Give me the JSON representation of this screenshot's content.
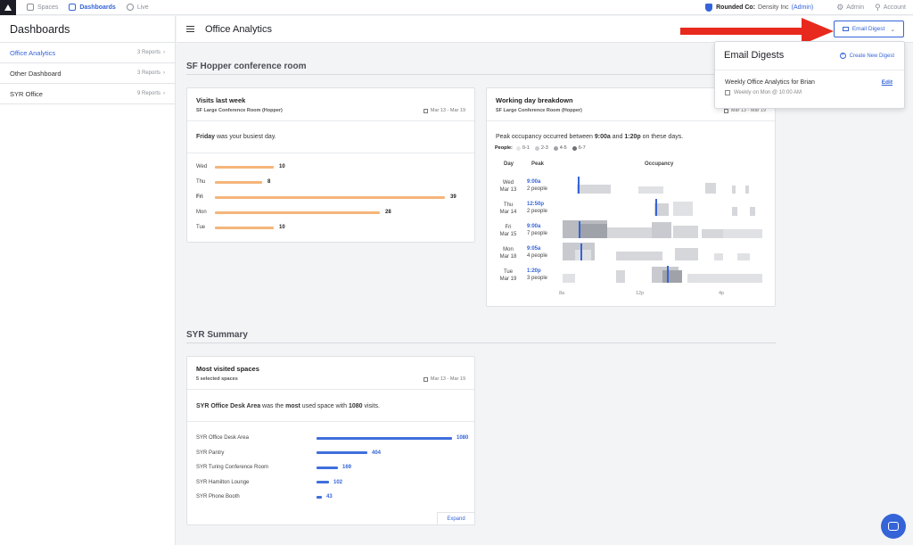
{
  "nav": {
    "items": [
      {
        "label": "Spaces",
        "icon": "grid-icon"
      },
      {
        "label": "Dashboards",
        "icon": "dashboard-icon"
      },
      {
        "label": "Live",
        "icon": "stopwatch-icon"
      }
    ],
    "org_label": "Rounded Co:",
    "org_name": "Density Inc",
    "org_role": "(Admin)",
    "admin_label": "Admin",
    "account_label": "Account"
  },
  "sidebar": {
    "title": "Dashboards",
    "items": [
      {
        "label": "Office Analytics",
        "count": "3 Reports"
      },
      {
        "label": "Other Dashboard",
        "count": "3 Reports"
      },
      {
        "label": "SYR Office",
        "count": "9 Reports"
      }
    ]
  },
  "header": {
    "title": "Office Analytics",
    "digest_button": "Email Digest"
  },
  "sections": {
    "hopper": "SF Hopper conference room",
    "syr": "SYR Summary"
  },
  "visits_card": {
    "title": "Visits last week",
    "subtitle": "SF Large Conference Room (Hopper)",
    "date": "Mar 13 - Mar 19",
    "summary_bold": "Friday",
    "summary_rest": " was your busiest day."
  },
  "working_card": {
    "title": "Working day breakdown",
    "subtitle": "SF Large Conference Room (Hopper)",
    "date": "Mar 13 - Mar 19",
    "summary_pre": "Peak occupancy occurred between ",
    "summary_t1": "9:00a",
    "summary_mid": " and ",
    "summary_t2": "1:20p",
    "summary_post": " on these days.",
    "legend_label": "People:",
    "legend": [
      {
        "label": "0-1",
        "color": "#e4e5e8"
      },
      {
        "label": "2-3",
        "color": "#c8cacf"
      },
      {
        "label": "4-5",
        "color": "#9fa2a8"
      },
      {
        "label": "6-7",
        "color": "#6f7278"
      }
    ],
    "col_day": "Day",
    "col_peak": "Peak",
    "col_occupancy": "Occupancy",
    "days": [
      {
        "dow": "Wed",
        "date": "Mar 13",
        "peak_time": "9:00a",
        "peak_people": "2 people"
      },
      {
        "dow": "Thu",
        "date": "Mar 14",
        "peak_time": "12:50p",
        "peak_people": "2 people"
      },
      {
        "dow": "Fri",
        "date": "Mar 15",
        "peak_time": "9:00a",
        "peak_people": "7 people"
      },
      {
        "dow": "Mon",
        "date": "Mar 18",
        "peak_time": "9:05a",
        "peak_people": "4 people"
      },
      {
        "dow": "Tue",
        "date": "Mar 19",
        "peak_time": "1:20p",
        "peak_people": "3 people"
      }
    ],
    "xticks": [
      "8a",
      "12p",
      "4p"
    ]
  },
  "visited_card": {
    "title": "Most visited spaces",
    "subtitle": "5 selected spaces",
    "date": "Mar 13 - Mar 19",
    "summary_space": "SYR Office Desk Area",
    "summary_pre": " was the ",
    "summary_most": "most",
    "summary_mid": " used space with ",
    "summary_count": "1080",
    "summary_post": " visits.",
    "expand": "Expand"
  },
  "popover": {
    "title": "Email Digests",
    "create": "Create New Digest",
    "digest_name": "Weekly Office Analytics for Brian",
    "edit": "Edit",
    "schedule": "Weekly on Mon @ 10:00 AM"
  },
  "chart_data": [
    {
      "type": "bar",
      "title": "Visits last week",
      "categories": [
        "Wed",
        "Thu",
        "Fri",
        "Mon",
        "Tue"
      ],
      "values": [
        10,
        8,
        39,
        28,
        10
      ],
      "color": "#f5b57a"
    },
    {
      "type": "bar",
      "title": "Most visited spaces",
      "categories": [
        "SYR Office Desk Area",
        "SYR Pantry",
        "SYR Turing Conference Room",
        "SYR Hamilton Lounge",
        "SYR Phone Booth"
      ],
      "values": [
        1080,
        404,
        169,
        102,
        43
      ],
      "color": "#3f6fdc"
    }
  ],
  "colors": {
    "accent": "#3564d8",
    "arrow": "#e8291d"
  }
}
